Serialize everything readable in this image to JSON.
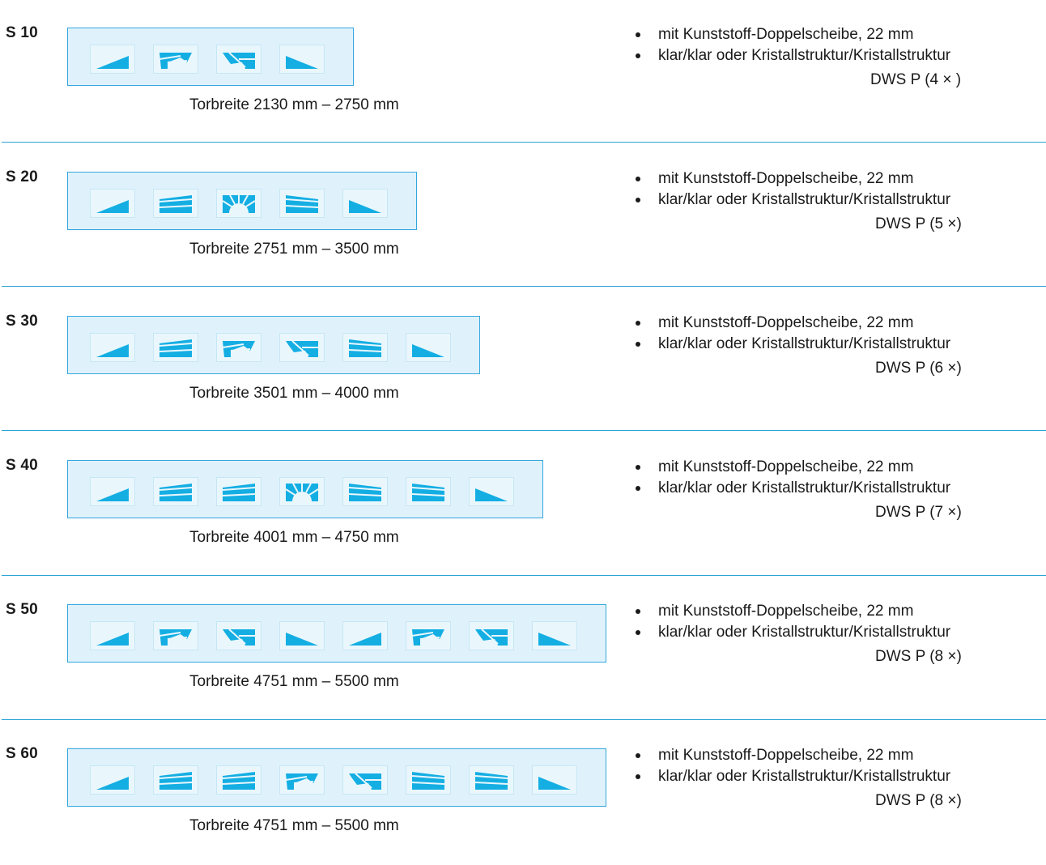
{
  "colors": {
    "accent": "#2ba3d6",
    "door_fill": "#dff2fb",
    "glass": "#14aee3"
  },
  "sections": [
    {
      "model": "S 10",
      "panels": [
        "tri-left",
        "wedge-left",
        "wedge-right",
        "tri-right"
      ],
      "width_range": "Torbreite 2130 mm – 2750 mm",
      "features": [
        "mit Kunststoff-Doppelscheibe, 22 mm",
        "klar/klar oder Kristallstruktur/Kristallstruktur"
      ],
      "dws": "DWS P (4 × )"
    },
    {
      "model": "S 20",
      "panels": [
        "tri-left",
        "bars-left",
        "sun",
        "bars-right",
        "tri-right"
      ],
      "width_range": "Torbreite 2751 mm – 3500 mm",
      "features": [
        "mit Kunststoff-Doppelscheibe, 22 mm",
        "klar/klar oder Kristallstruktur/Kristallstruktur"
      ],
      "dws": "DWS P (5 ×)"
    },
    {
      "model": "S 30",
      "panels": [
        "tri-left",
        "bars-left",
        "wedge-left",
        "wedge-right",
        "bars-right",
        "tri-right"
      ],
      "width_range": "Torbreite 3501 mm – 4000 mm",
      "features": [
        "mit Kunststoff-Doppelscheibe, 22 mm",
        "klar/klar oder Kristallstruktur/Kristallstruktur"
      ],
      "dws": "DWS P (6 ×)"
    },
    {
      "model": "S 40",
      "panels": [
        "tri-left",
        "bars-left",
        "bars-left",
        "sun",
        "bars-right",
        "bars-right",
        "tri-right"
      ],
      "width_range": "Torbreite 4001 mm – 4750 mm",
      "features": [
        "mit Kunststoff-Doppelscheibe, 22 mm",
        "klar/klar oder Kristallstruktur/Kristallstruktur"
      ],
      "dws": "DWS P (7 ×)"
    },
    {
      "model": "S 50",
      "panels": [
        "tri-left",
        "wedge-left",
        "wedge-right",
        "tri-right",
        "tri-left",
        "wedge-left",
        "wedge-right",
        "tri-right"
      ],
      "width_range": "Torbreite 4751 mm – 5500 mm",
      "features": [
        "mit Kunststoff-Doppelscheibe, 22 mm",
        "klar/klar oder Kristallstruktur/Kristallstruktur"
      ],
      "dws": "DWS P (8 ×)"
    },
    {
      "model": "S 60",
      "panels": [
        "tri-left",
        "bars-left",
        "bars-left",
        "wedge-left",
        "wedge-right",
        "bars-right",
        "bars-right",
        "tri-right"
      ],
      "width_range": "Torbreite 4751 mm – 5500 mm",
      "features": [
        "mit Kunststoff-Doppelscheibe, 22 mm",
        "klar/klar oder Kristallstruktur/Kristallstruktur"
      ],
      "dws": "DWS P (8 ×)"
    }
  ]
}
